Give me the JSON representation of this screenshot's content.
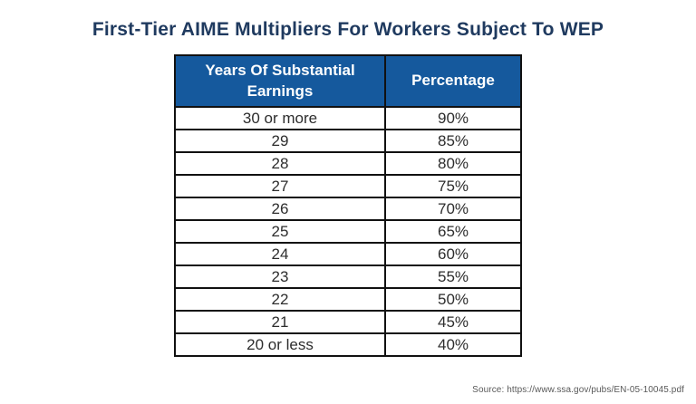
{
  "title": "First-Tier AIME Multipliers For Workers Subject To WEP",
  "source": "Source: https://www.ssa.gov/pubs/EN-05-10045.pdf",
  "colors": {
    "title_text": "#1f3a5f",
    "header_background": "#15599d",
    "header_text": "#ffffff",
    "table_border": "#111111",
    "cell_text": "#2d2d2d",
    "source_text": "#595959",
    "page_background": "#ffffff"
  },
  "chart_data": {
    "type": "table",
    "title": "First-Tier AIME Multipliers For Workers Subject To WEP",
    "columns": [
      "Years Of Substantial Earnings",
      "Percentage"
    ],
    "rows": [
      [
        "30 or more",
        "90%"
      ],
      [
        "29",
        "85%"
      ],
      [
        "28",
        "80%"
      ],
      [
        "27",
        "75%"
      ],
      [
        "26",
        "70%"
      ],
      [
        "25",
        "65%"
      ],
      [
        "24",
        "60%"
      ],
      [
        "23",
        "55%"
      ],
      [
        "22",
        "50%"
      ],
      [
        "21",
        "45%"
      ],
      [
        "20 or less",
        "40%"
      ]
    ]
  }
}
